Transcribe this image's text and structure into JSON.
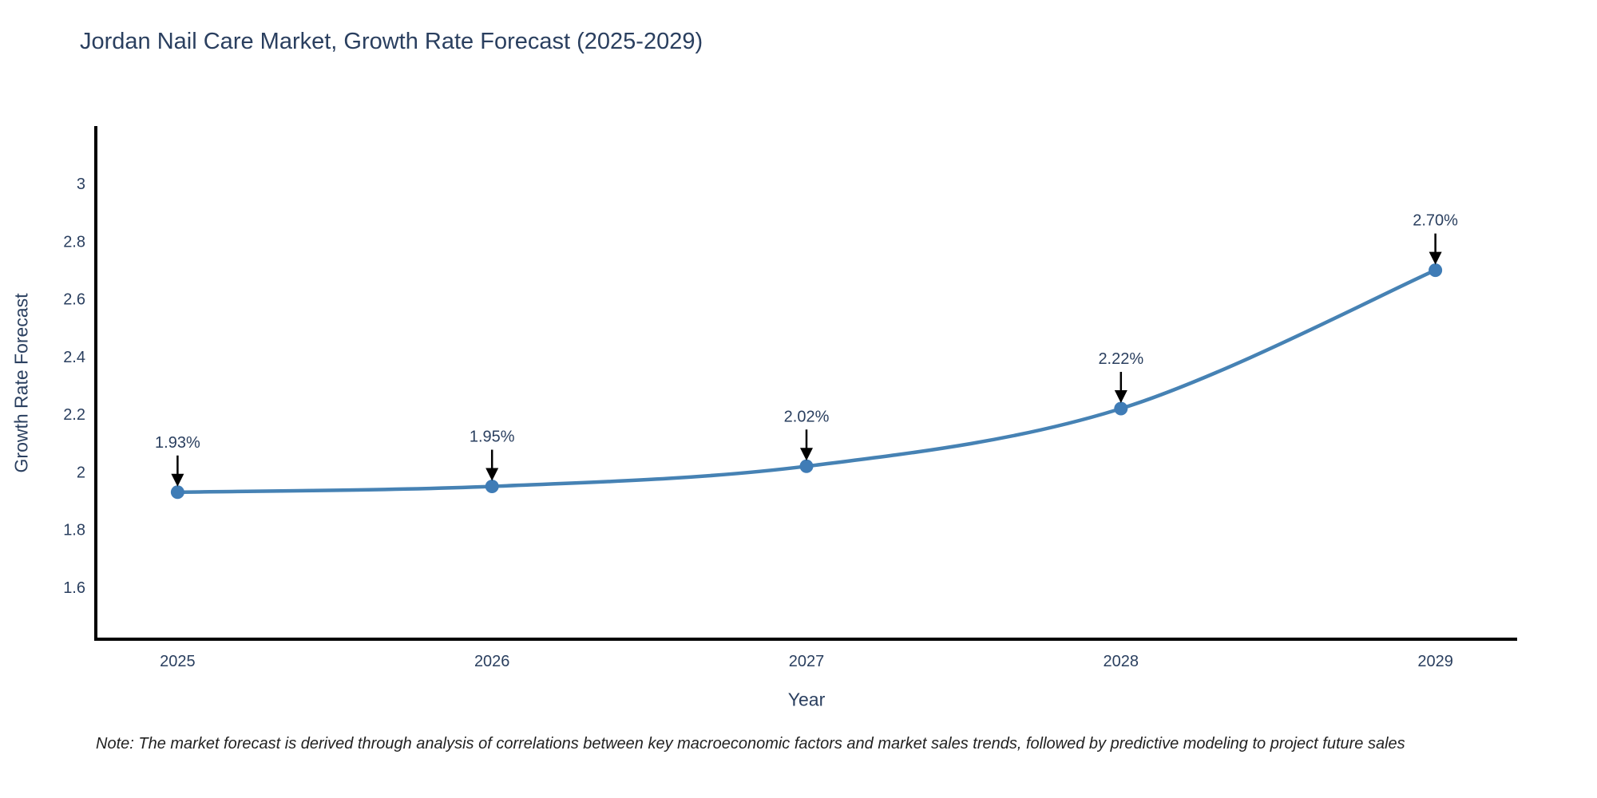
{
  "chart_data": {
    "type": "line",
    "title": "Jordan Nail Care Market, Growth Rate Forecast (2025-2029)",
    "xlabel": "Year",
    "ylabel": "Growth Rate Forecast",
    "x": [
      2025,
      2026,
      2027,
      2028,
      2029
    ],
    "values": [
      1.93,
      1.95,
      2.02,
      2.22,
      2.7
    ],
    "point_labels": [
      "1.93%",
      "1.95%",
      "2.02%",
      "2.22%",
      "2.70%"
    ],
    "series_name": "Growth Rate Forecast",
    "xticks": [
      2025,
      2026,
      2027,
      2028,
      2029
    ],
    "yticks": [
      1.6,
      1.8,
      2,
      2.2,
      2.4,
      2.6,
      2.8,
      3
    ],
    "xlim": [
      2024.74,
      2029.26
    ],
    "ylim": [
      1.42,
      3.2
    ],
    "grid": false,
    "legend": false,
    "line_shape": "spline",
    "line_color": "#4682b4",
    "marker_color": "#3f7cb6",
    "axis_color": "#000000",
    "text_color": "#2a3f5f",
    "annotation_color": "#000000"
  },
  "note": "Note: The market forecast is derived through analysis of correlations between key macroeconomic factors and market sales trends, followed by predictive modeling to project future sales"
}
